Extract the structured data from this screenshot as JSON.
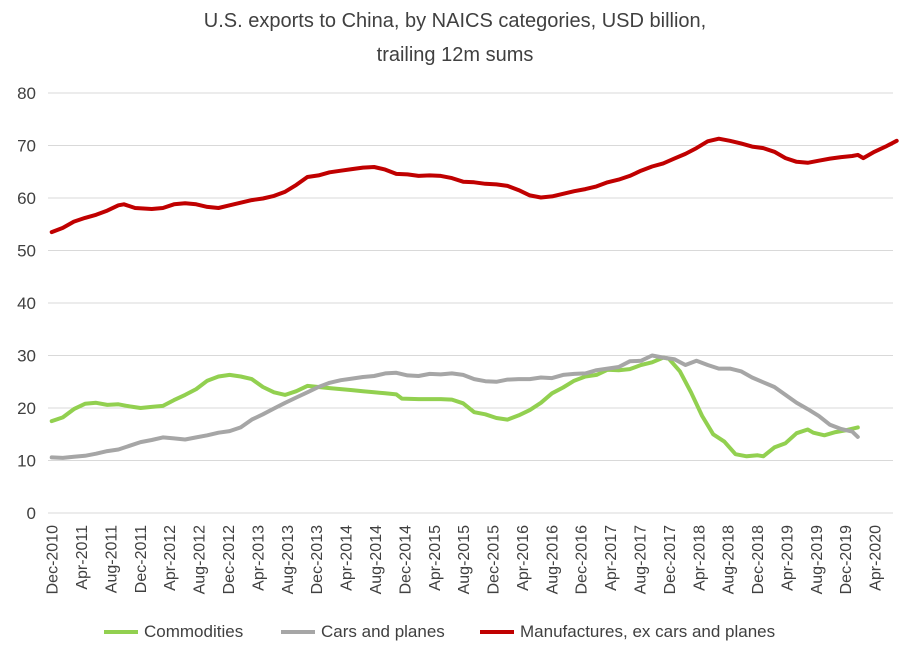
{
  "chart_data": {
    "type": "line",
    "title": "U.S. exports to China, by NAICS categories, USD billion,",
    "subtitle": "trailing 12m sums",
    "ylim": [
      0,
      80
    ],
    "y_ticks": [
      0,
      10,
      20,
      30,
      40,
      50,
      60,
      70,
      80
    ],
    "grid": true,
    "legend_position": "bottom",
    "x_tick_labels": [
      "Dec-2010",
      "Apr-2011",
      "Aug-2011",
      "Dec-2011",
      "Apr-2012",
      "Aug-2012",
      "Dec-2012",
      "Apr-2013",
      "Aug-2013",
      "Dec-2013",
      "Apr-2014",
      "Aug-2014",
      "Dec-2014",
      "Apr-2015",
      "Aug-2015",
      "Dec-2015",
      "Apr-2016",
      "Aug-2016",
      "Dec-2016",
      "Apr-2017",
      "Aug-2017",
      "Dec-2017",
      "Apr-2018",
      "Aug-2018",
      "Dec-2018",
      "Apr-2019",
      "Aug-2019",
      "Dec-2019",
      "Apr-2020"
    ],
    "x_start": "Dec-2010",
    "months": 115,
    "series": [
      {
        "name": "Commodities",
        "color": "#92d050",
        "points": [
          [
            0,
            17.5
          ],
          [
            2,
            18.2
          ],
          [
            4,
            19.8
          ],
          [
            6,
            20.8
          ],
          [
            8,
            21.0
          ],
          [
            10,
            20.6
          ],
          [
            12,
            20.7
          ],
          [
            14,
            20.3
          ],
          [
            16,
            20.0
          ],
          [
            18,
            20.2
          ],
          [
            20,
            20.4
          ],
          [
            22,
            21.5
          ],
          [
            24,
            22.5
          ],
          [
            26,
            23.6
          ],
          [
            28,
            25.2
          ],
          [
            30,
            26.0
          ],
          [
            32,
            26.3
          ],
          [
            34,
            26.0
          ],
          [
            36,
            25.5
          ],
          [
            38,
            24.0
          ],
          [
            40,
            23.0
          ],
          [
            42,
            22.5
          ],
          [
            44,
            23.2
          ],
          [
            46,
            24.2
          ],
          [
            48,
            24.0
          ],
          [
            50,
            23.8
          ],
          [
            52,
            23.6
          ],
          [
            54,
            23.4
          ],
          [
            56,
            23.2
          ],
          [
            58,
            23.0
          ],
          [
            60,
            22.8
          ],
          [
            62,
            22.6
          ],
          [
            63,
            21.8
          ],
          [
            66,
            21.7
          ],
          [
            70,
            21.7
          ],
          [
            72,
            21.6
          ],
          [
            74,
            20.9
          ],
          [
            76,
            19.2
          ],
          [
            78,
            18.8
          ],
          [
            80,
            18.1
          ],
          [
            82,
            17.8
          ],
          [
            84,
            18.6
          ],
          [
            86,
            19.6
          ],
          [
            88,
            21.0
          ],
          [
            90,
            22.8
          ],
          [
            92,
            23.9
          ],
          [
            94,
            25.2
          ],
          [
            96,
            26.0
          ],
          [
            98,
            26.3
          ],
          [
            100,
            27.3
          ],
          [
            102,
            27.2
          ],
          [
            104,
            27.4
          ],
          [
            106,
            28.2
          ],
          [
            108,
            28.7
          ],
          [
            110,
            29.6
          ],
          [
            111,
            29.4
          ],
          [
            113,
            27.0
          ],
          [
            115,
            23.0
          ],
          [
            117,
            18.5
          ],
          [
            119,
            15.0
          ],
          [
            121,
            13.6
          ],
          [
            123,
            11.2
          ],
          [
            125,
            10.8
          ],
          [
            127,
            11.0
          ],
          [
            128,
            10.8
          ],
          [
            130,
            12.5
          ],
          [
            132,
            13.3
          ],
          [
            134,
            15.2
          ],
          [
            136,
            15.9
          ],
          [
            137,
            15.3
          ],
          [
            139,
            14.8
          ],
          [
            141,
            15.4
          ],
          [
            143,
            15.8
          ],
          [
            145,
            16.3
          ]
        ]
      },
      {
        "name": "Cars and planes",
        "color": "#a6a6a6",
        "points": [
          [
            0,
            10.6
          ],
          [
            2,
            10.5
          ],
          [
            4,
            10.7
          ],
          [
            6,
            10.9
          ],
          [
            8,
            11.3
          ],
          [
            10,
            11.8
          ],
          [
            12,
            12.1
          ],
          [
            14,
            12.8
          ],
          [
            16,
            13.5
          ],
          [
            18,
            13.9
          ],
          [
            20,
            14.4
          ],
          [
            22,
            14.2
          ],
          [
            24,
            14.0
          ],
          [
            26,
            14.4
          ],
          [
            28,
            14.8
          ],
          [
            30,
            15.3
          ],
          [
            32,
            15.6
          ],
          [
            34,
            16.3
          ],
          [
            36,
            17.8
          ],
          [
            38,
            18.8
          ],
          [
            40,
            19.9
          ],
          [
            42,
            21.0
          ],
          [
            44,
            22.0
          ],
          [
            46,
            23.0
          ],
          [
            48,
            24.0
          ],
          [
            50,
            24.8
          ],
          [
            52,
            25.3
          ],
          [
            54,
            25.6
          ],
          [
            56,
            25.9
          ],
          [
            58,
            26.1
          ],
          [
            60,
            26.6
          ],
          [
            62,
            26.7
          ],
          [
            64,
            26.2
          ],
          [
            66,
            26.1
          ],
          [
            68,
            26.5
          ],
          [
            70,
            26.4
          ],
          [
            72,
            26.6
          ],
          [
            74,
            26.3
          ],
          [
            76,
            25.5
          ],
          [
            78,
            25.1
          ],
          [
            80,
            25.0
          ],
          [
            82,
            25.4
          ],
          [
            84,
            25.5
          ],
          [
            86,
            25.5
          ],
          [
            88,
            25.8
          ],
          [
            90,
            25.7
          ],
          [
            92,
            26.3
          ],
          [
            94,
            26.5
          ],
          [
            96,
            26.6
          ],
          [
            98,
            27.2
          ],
          [
            100,
            27.5
          ],
          [
            102,
            27.8
          ],
          [
            104,
            28.9
          ],
          [
            106,
            29.0
          ],
          [
            108,
            30.0
          ],
          [
            110,
            29.6
          ],
          [
            112,
            29.3
          ],
          [
            114,
            28.2
          ],
          [
            116,
            29.0
          ],
          [
            118,
            28.2
          ],
          [
            120,
            27.5
          ],
          [
            122,
            27.5
          ],
          [
            124,
            27.0
          ],
          [
            126,
            25.8
          ],
          [
            128,
            24.9
          ],
          [
            130,
            24.0
          ],
          [
            132,
            22.5
          ],
          [
            134,
            21.0
          ],
          [
            136,
            19.8
          ],
          [
            138,
            18.5
          ],
          [
            140,
            16.8
          ],
          [
            142,
            16.0
          ],
          [
            144,
            15.5
          ],
          [
            145,
            14.5
          ]
        ]
      },
      {
        "name": "Manufactures, ex cars and planes",
        "color": "#c00000",
        "points": [
          [
            0,
            53.5
          ],
          [
            2,
            54.3
          ],
          [
            4,
            55.5
          ],
          [
            6,
            56.2
          ],
          [
            8,
            56.8
          ],
          [
            10,
            57.6
          ],
          [
            12,
            58.6
          ],
          [
            13,
            58.8
          ],
          [
            15,
            58.1
          ],
          [
            18,
            57.9
          ],
          [
            20,
            58.1
          ],
          [
            22,
            58.8
          ],
          [
            24,
            59.0
          ],
          [
            26,
            58.8
          ],
          [
            28,
            58.3
          ],
          [
            30,
            58.1
          ],
          [
            32,
            58.6
          ],
          [
            34,
            59.1
          ],
          [
            36,
            59.6
          ],
          [
            38,
            59.9
          ],
          [
            40,
            60.4
          ],
          [
            42,
            61.2
          ],
          [
            44,
            62.5
          ],
          [
            46,
            64.0
          ],
          [
            48,
            64.3
          ],
          [
            50,
            64.9
          ],
          [
            52,
            65.2
          ],
          [
            54,
            65.5
          ],
          [
            56,
            65.8
          ],
          [
            58,
            65.9
          ],
          [
            60,
            65.4
          ],
          [
            62,
            64.6
          ],
          [
            64,
            64.5
          ],
          [
            66,
            64.2
          ],
          [
            68,
            64.3
          ],
          [
            70,
            64.2
          ],
          [
            72,
            63.8
          ],
          [
            74,
            63.1
          ],
          [
            76,
            63.0
          ],
          [
            78,
            62.7
          ],
          [
            80,
            62.6
          ],
          [
            82,
            62.3
          ],
          [
            84,
            61.5
          ],
          [
            86,
            60.5
          ],
          [
            88,
            60.1
          ],
          [
            90,
            60.3
          ],
          [
            92,
            60.8
          ],
          [
            94,
            61.3
          ],
          [
            96,
            61.7
          ],
          [
            98,
            62.2
          ],
          [
            100,
            63.0
          ],
          [
            102,
            63.5
          ],
          [
            104,
            64.2
          ],
          [
            106,
            65.2
          ],
          [
            108,
            66.0
          ],
          [
            110,
            66.6
          ],
          [
            112,
            67.5
          ],
          [
            114,
            68.4
          ],
          [
            116,
            69.5
          ],
          [
            118,
            70.8
          ],
          [
            120,
            71.3
          ],
          [
            122,
            70.9
          ],
          [
            124,
            70.4
          ],
          [
            126,
            69.8
          ],
          [
            128,
            69.5
          ],
          [
            130,
            68.8
          ],
          [
            132,
            67.6
          ],
          [
            134,
            66.9
          ],
          [
            136,
            66.7
          ],
          [
            138,
            67.1
          ],
          [
            140,
            67.5
          ],
          [
            142,
            67.8
          ],
          [
            144,
            68.0
          ],
          [
            145,
            68.2
          ],
          [
            146,
            67.6
          ],
          [
            148,
            68.8
          ],
          [
            150,
            69.8
          ],
          [
            152,
            70.9
          ]
        ]
      }
    ]
  }
}
